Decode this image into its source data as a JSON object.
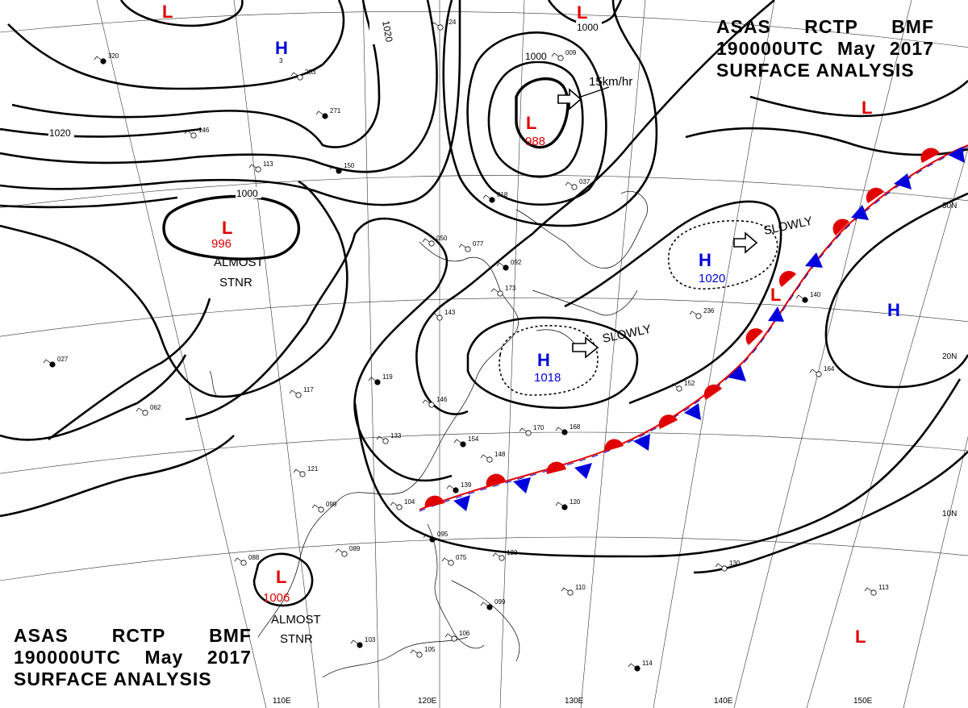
{
  "header_top": {
    "line1_words": [
      "ASAS",
      "RCTP",
      "BMF"
    ],
    "line2_words": [
      "190000UTC",
      "May",
      "2017"
    ],
    "line3": "SURFACE ANALYSIS"
  },
  "header_bottom": {
    "line1_words": [
      "ASAS",
      "RCTP",
      "BMF"
    ],
    "line2_words": [
      "190000UTC",
      "May",
      "2017"
    ],
    "line3": "SURFACE ANALYSIS"
  },
  "pressure_systems": [
    {
      "id": "low-north-edge",
      "type": "L",
      "value": "",
      "color": "#e00000"
    },
    {
      "id": "low-korea",
      "type": "L",
      "value": "",
      "color": "#e00000"
    },
    {
      "id": "high-mongolia",
      "type": "H",
      "value": "3",
      "color": "#0000dd"
    },
    {
      "id": "low-sea-of-japan",
      "type": "L",
      "value": "988",
      "color": "#e00000"
    },
    {
      "id": "low-mongolia-996",
      "type": "L",
      "value": "996",
      "color": "#e00000"
    },
    {
      "id": "low-northeast-pacific",
      "type": "L",
      "value": "",
      "color": "#e00000"
    },
    {
      "id": "high-pacific-1020",
      "type": "H",
      "value": "1020",
      "color": "#0000dd"
    },
    {
      "id": "high-east-pacific",
      "type": "H",
      "value": "",
      "color": "#0000dd"
    },
    {
      "id": "high-east-china-sea",
      "type": "H",
      "value": "1018",
      "color": "#0000dd"
    },
    {
      "id": "low-frontal",
      "type": "L",
      "value": "",
      "color": "#e00000"
    },
    {
      "id": "low-indochina",
      "type": "L",
      "value": "1006",
      "color": "#e00000"
    },
    {
      "id": "low-south-pacific",
      "type": "L",
      "value": "",
      "color": "#e00000"
    }
  ],
  "isobar_labels": [
    "1020",
    "1020",
    "1000",
    "1000",
    "1000"
  ],
  "annotations": {
    "motion_low": "15km/hr",
    "motion_high_pacific": "SLOWLY",
    "motion_high_ecs": "SLOWLY",
    "stnr_mongolia_1": "ALMOST",
    "stnr_mongolia_2": "STNR",
    "stnr_indochina_1": "ALMOST",
    "stnr_indochina_2": "STNR"
  },
  "latitude_labels": [
    "30N",
    "20N",
    "10N"
  ],
  "longitude_labels": [
    "110E",
    "120E",
    "130E",
    "140E",
    "150E"
  ],
  "station_labels": [
    "320",
    "124",
    "283",
    "271",
    "146",
    "113",
    "150",
    "050",
    "077",
    "092",
    "173",
    "143",
    "119",
    "146",
    "133",
    "154",
    "148",
    "170",
    "168",
    "123",
    "121",
    "139",
    "104",
    "099",
    "120",
    "088",
    "089",
    "095",
    "075",
    "110",
    "099",
    "105",
    "106",
    "103",
    "130",
    "113",
    "114",
    "152",
    "164",
    "140",
    "236",
    "009",
    "018",
    "037",
    "062",
    "027",
    "117"
  ],
  "front": {
    "type": "stationary",
    "warm_color": "#e00000",
    "cold_color": "#0000dd"
  }
}
